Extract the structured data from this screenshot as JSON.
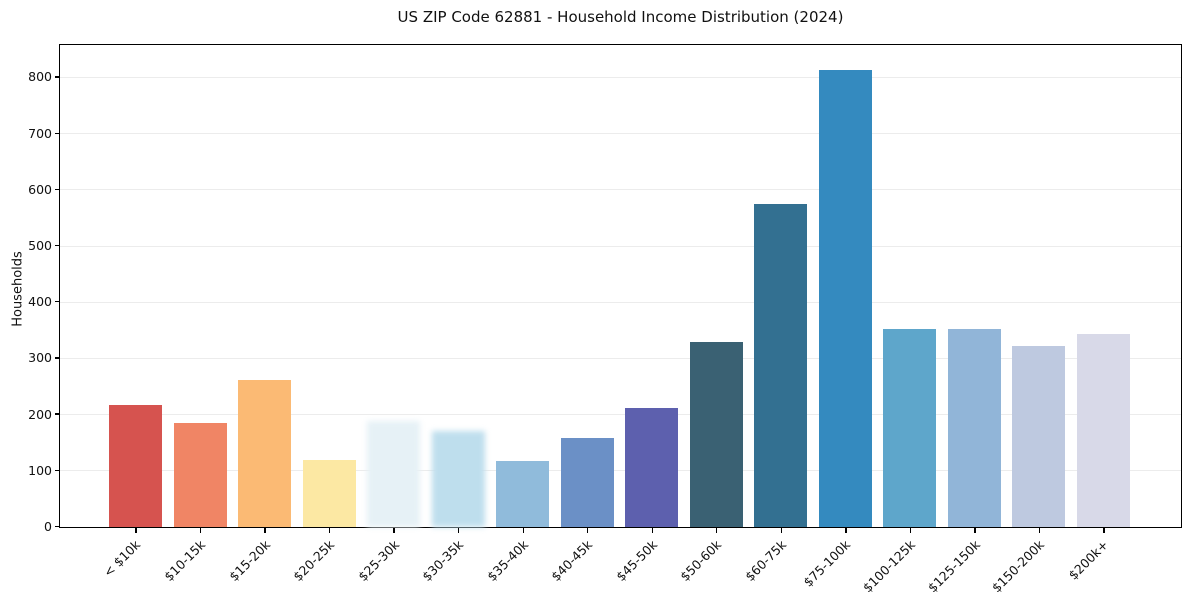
{
  "chart_data": {
    "type": "bar",
    "title": "US ZIP Code 62881 - Household Income Distribution (2024)",
    "xlabel": "",
    "ylabel": "Households",
    "ylim": [
      0,
      856
    ],
    "yticks": [
      0,
      100,
      200,
      300,
      400,
      500,
      600,
      700,
      800
    ],
    "grid": "horizontal",
    "legend": "none",
    "categories": [
      "< $10k",
      "$10-15k",
      "$15-20k",
      "$20-25k",
      "$25-30k",
      "$30-35k",
      "$35-40k",
      "$40-45k",
      "$45-50k",
      "$50-60k",
      "$60-75k",
      "$75-100k",
      "$100-125k",
      "$125-150k",
      "$150-200k",
      "$200k+"
    ],
    "values": [
      217,
      185,
      262,
      120,
      189,
      171,
      118,
      158,
      211,
      330,
      575,
      814,
      353,
      353,
      323,
      343
    ],
    "bar_colors": [
      "#d6534f",
      "#f08565",
      "#fbba74",
      "#fce8a3",
      "#e6f1f6",
      "#bedeed",
      "#90bbdb",
      "#6b90c6",
      "#5d60ae",
      "#3a6173",
      "#337091",
      "#348abf",
      "#5ea6cb",
      "#91b5d8",
      "#bec9e0",
      "#d8d9e8"
    ],
    "soft_blur_categories": [
      "$25-30k",
      "$30-35k"
    ],
    "colors": {
      "background": "#ffffff",
      "spine": "#000000",
      "grid": "#ececec",
      "text": "#111111"
    }
  }
}
